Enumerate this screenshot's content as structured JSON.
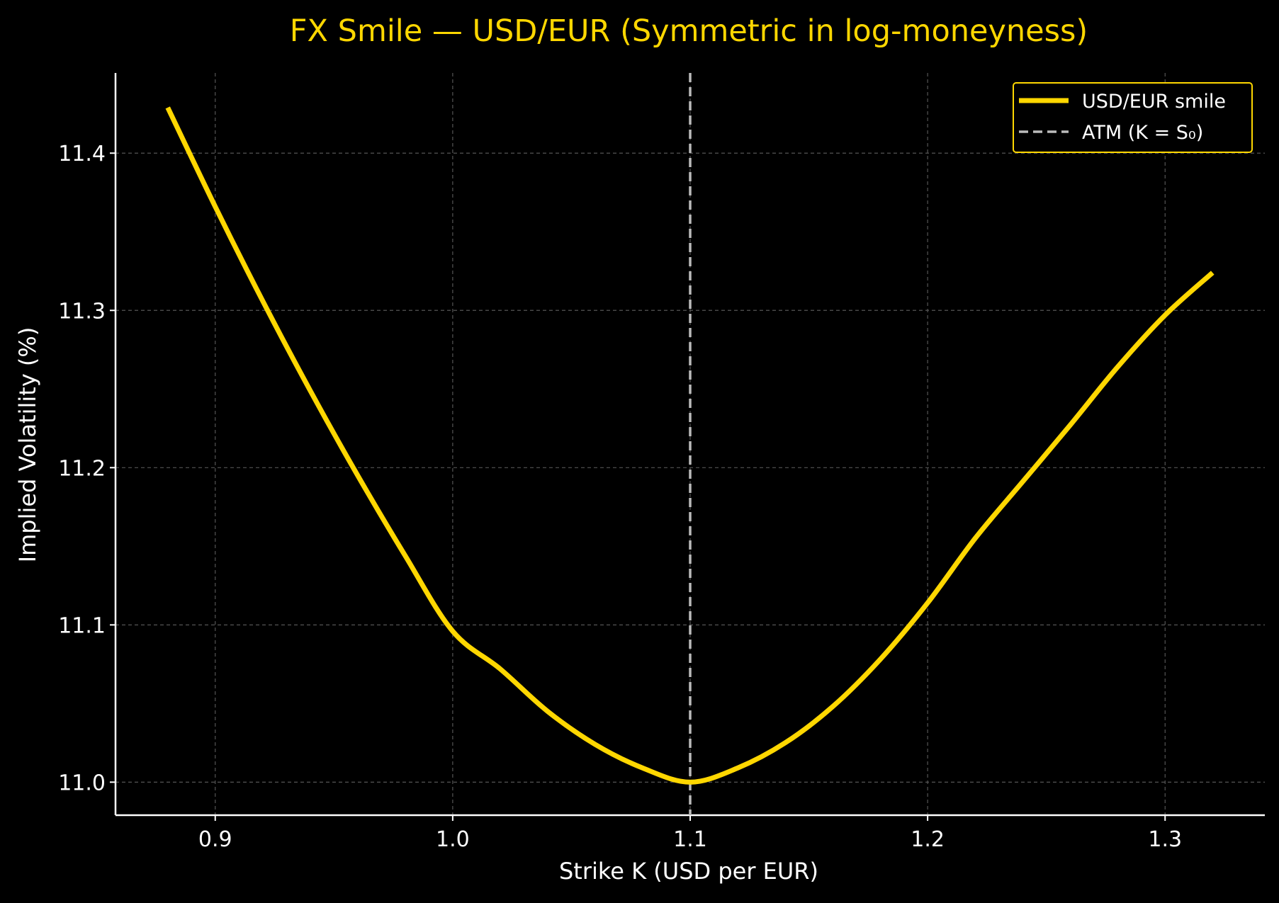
{
  "chart_data": {
    "type": "line",
    "title": "FX Smile — USD/EUR (Symmetric in log-moneyness)",
    "xlabel": "Strike K (USD per EUR)",
    "ylabel": "Implied Volatility (%)",
    "xlim": [
      0.858,
      1.342
    ],
    "ylim": [
      10.979,
      11.451
    ],
    "x_ticks": [
      0.9,
      1.0,
      1.1,
      1.2,
      1.3
    ],
    "x_tick_labels": [
      "0.9",
      "1.0",
      "1.1",
      "1.2",
      "1.3"
    ],
    "y_ticks": [
      11.0,
      11.1,
      11.2,
      11.3,
      11.4
    ],
    "y_tick_labels": [
      "11.0",
      "11.1",
      "11.2",
      "11.3",
      "11.4"
    ],
    "grid": true,
    "legend_position": "top-right",
    "series": [
      {
        "name": "USD/EUR smile",
        "color": "#FFD700",
        "x": [
          0.88,
          0.9,
          0.92,
          0.94,
          0.96,
          0.98,
          1.0,
          1.02,
          1.04,
          1.06,
          1.08,
          1.1,
          1.12,
          1.14,
          1.16,
          1.18,
          1.2,
          1.22,
          1.24,
          1.26,
          1.28,
          1.3,
          1.32
        ],
        "y": [
          11.429,
          11.366,
          11.306,
          11.249,
          11.195,
          11.144,
          11.096,
          11.072,
          11.045,
          11.024,
          11.009,
          11.0,
          11.009,
          11.025,
          11.048,
          11.078,
          11.114,
          11.155,
          11.191,
          11.227,
          11.264,
          11.297,
          11.324
        ]
      },
      {
        "name": "ATM (K = S₀)",
        "color": "#BBBBBB",
        "style": "dashed",
        "x_value": 1.1
      }
    ]
  }
}
